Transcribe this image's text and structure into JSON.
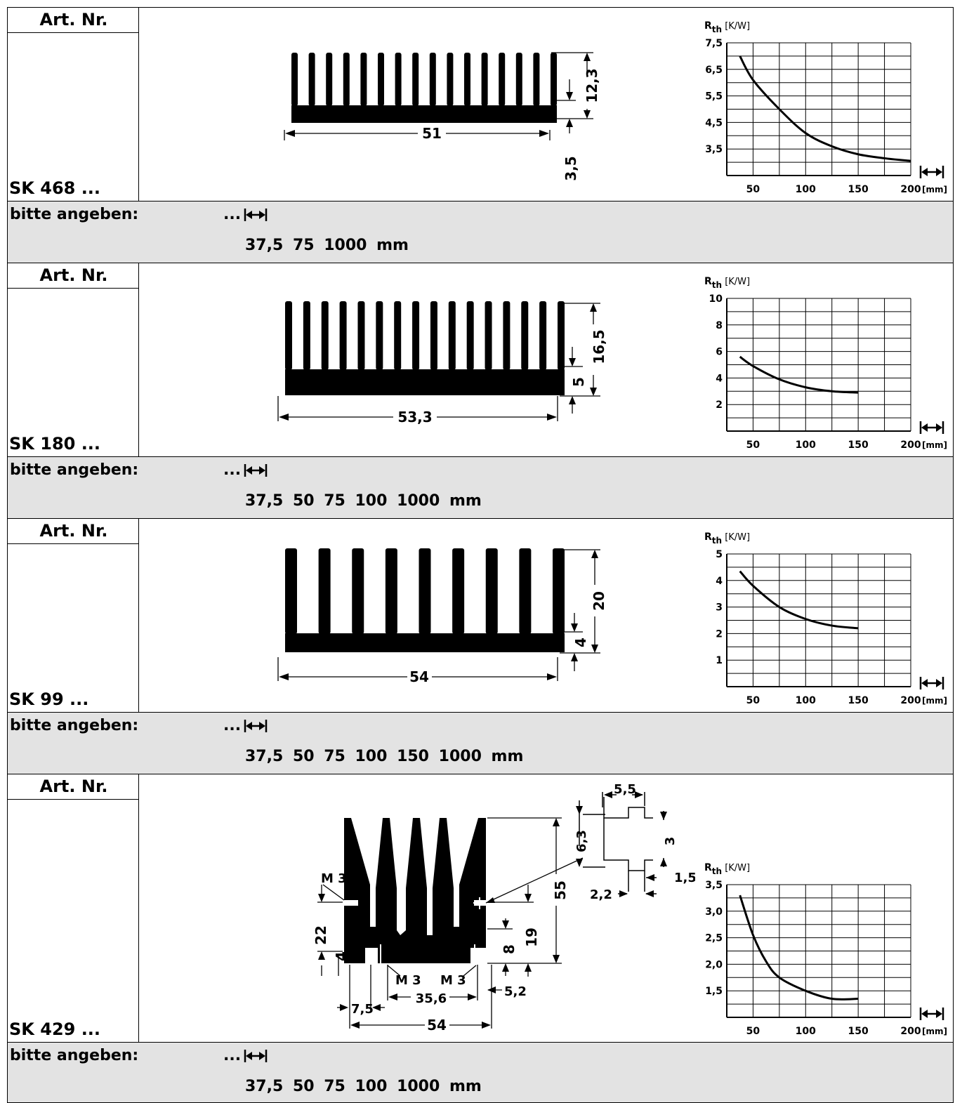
{
  "labels": {
    "art_nr": "Art. Nr.",
    "bitte_angeben": "bitte angeben:",
    "ellipsis": "..."
  },
  "chart_labels": {
    "rth": "R",
    "rth_sub": "th",
    "unit": "[K/W]",
    "x_unit": "[mm]"
  },
  "products": [
    {
      "article_no": "SK 468 ...",
      "lengths": "37,5  75  1000 mm",
      "dims": {
        "width": "51",
        "height": "12,3",
        "base": "3,5"
      },
      "chart_data": {
        "type": "line",
        "x_ticks": [
          "50",
          "100",
          "150",
          "200"
        ],
        "y_ticks": [
          "7,5",
          "6,5",
          "5,5",
          "4,5",
          "3,5"
        ],
        "xlim": [
          25,
          200
        ],
        "ylim": [
          2.5,
          7.5
        ],
        "x": [
          37.5,
          50,
          75,
          100,
          125,
          150,
          175,
          200
        ],
        "y": [
          7.0,
          6.1,
          5.0,
          4.1,
          3.6,
          3.3,
          3.15,
          3.05
        ]
      }
    },
    {
      "article_no": "SK 180 ...",
      "lengths": "37,5  50  75  100  1000 mm",
      "dims": {
        "width": "53,3",
        "height": "16,5",
        "base": "5"
      },
      "chart_data": {
        "type": "line",
        "x_ticks": [
          "50",
          "100",
          "150",
          "200"
        ],
        "y_ticks": [
          "10",
          "8",
          "6",
          "4",
          "2"
        ],
        "xlim": [
          25,
          200
        ],
        "ylim": [
          0,
          10
        ],
        "x": [
          37.5,
          50,
          75,
          100,
          125,
          150
        ],
        "y": [
          5.6,
          4.9,
          3.9,
          3.3,
          3.0,
          2.9
        ]
      }
    },
    {
      "article_no": "SK 99 ...",
      "lengths": "37,5  50  75  100  150  1000 mm",
      "dims": {
        "width": "54",
        "height": "20",
        "base": "4"
      },
      "chart_data": {
        "type": "line",
        "x_ticks": [
          "50",
          "100",
          "150",
          "200"
        ],
        "y_ticks": [
          "5",
          "4",
          "3",
          "2",
          "1"
        ],
        "xlim": [
          25,
          200
        ],
        "ylim": [
          0,
          5
        ],
        "x": [
          37.5,
          50,
          75,
          100,
          125,
          150
        ],
        "y": [
          4.35,
          3.8,
          3.0,
          2.55,
          2.3,
          2.2
        ]
      }
    },
    {
      "article_no": "SK 429 ...",
      "lengths": "37,5  50  75  100  1000 mm",
      "dims": {
        "width": "54",
        "height": "55",
        "h19": "19",
        "h22": "22",
        "h8": "8",
        "h4": "4",
        "d7_5": "7,5",
        "d35_6": "35,6",
        "d5_2": "5,2",
        "m3_left": "M 3",
        "m3_a": "M 3",
        "m3_b": "M 3",
        "d5_5": "5,5",
        "d6_3": "6,3",
        "d3": "3",
        "d1_5": "1,5",
        "d2_2": "2,2"
      },
      "chart_data": {
        "type": "line",
        "x_ticks": [
          "50",
          "100",
          "150",
          "200"
        ],
        "y_ticks": [
          "3,5",
          "3,0",
          "2,5",
          "2,0",
          "1,5"
        ],
        "xlim": [
          25,
          200
        ],
        "ylim": [
          1.0,
          3.5
        ],
        "x": [
          37.5,
          50,
          62.5,
          75,
          100,
          125,
          150
        ],
        "y": [
          3.3,
          2.55,
          2.05,
          1.75,
          1.5,
          1.35,
          1.35
        ]
      }
    }
  ]
}
